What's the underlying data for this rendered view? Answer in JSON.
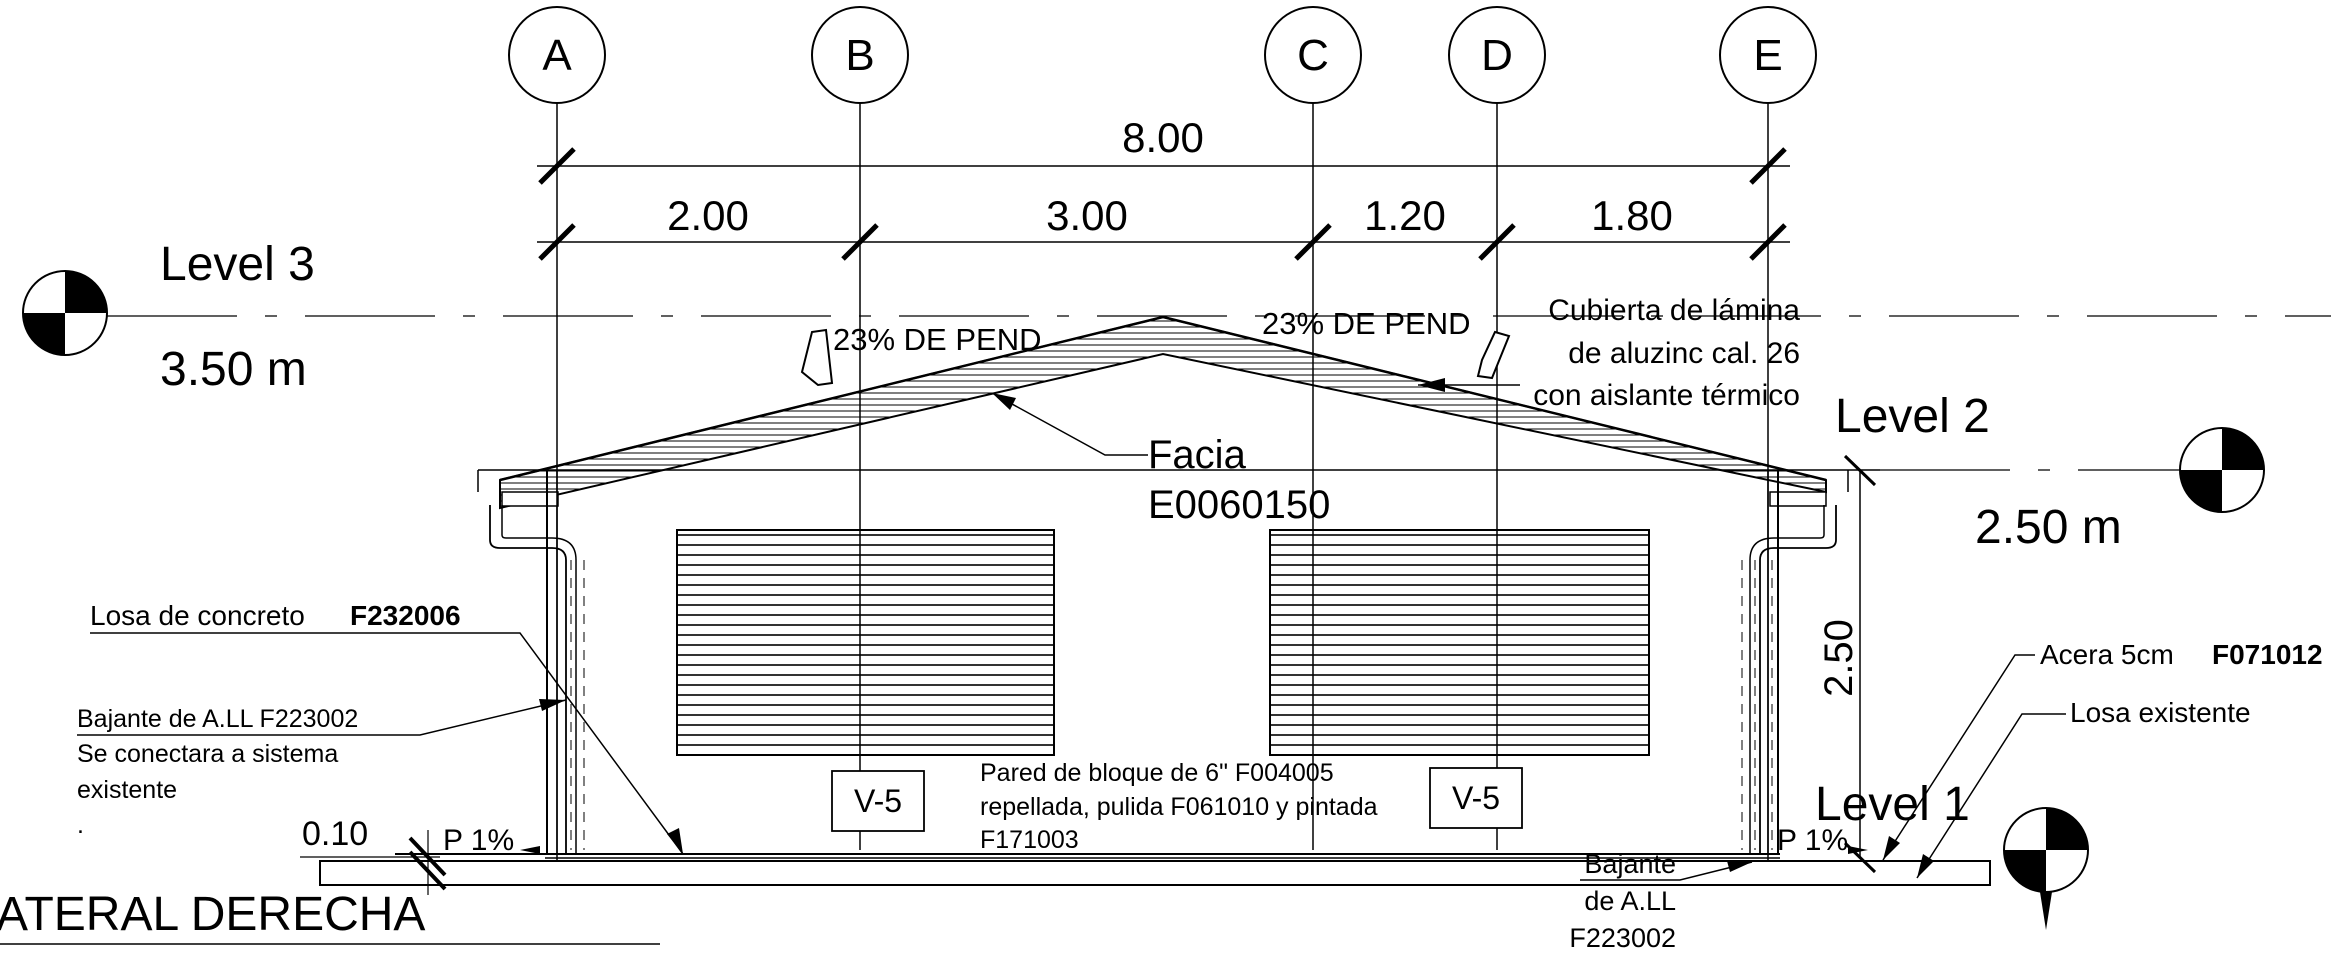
{
  "grid": {
    "labels": [
      "A",
      "B",
      "C",
      "D",
      "E"
    ]
  },
  "dimensions": {
    "overall": "8.00",
    "segments": [
      "2.00",
      "3.00",
      "1.20",
      "1.80"
    ],
    "height": "2.50",
    "base": "0.10"
  },
  "levels": [
    {
      "name": "Level 3",
      "elevation": "3.50 m"
    },
    {
      "name": "Level 2",
      "elevation": "2.50 m"
    },
    {
      "name": "Level 1",
      "elevation": ""
    }
  ],
  "annotations": {
    "slope_left": "23% DE PEND",
    "slope_right": "23% DE PEND",
    "roof_note": [
      "Cubierta de lámina",
      "de aluzinc cal. 26",
      "con aislante térmico"
    ],
    "facia": [
      "Facia",
      "E0060150"
    ],
    "slab": {
      "text": "Losa de concreto",
      "code": "F232006"
    },
    "downpipe_left": [
      "Bajante de A.LL F223002",
      "Se conectara a sistema",
      "existente",
      "."
    ],
    "downpipe_right": [
      "Bajante",
      "de A.LL",
      "F223002"
    ],
    "wall_note": [
      "Pared de bloque de 6\" F004005",
      "repellada, pulida F061010 y pintada",
      "F171003"
    ],
    "window_tag_left": "V-5",
    "window_tag_right": "V-5",
    "slope_floor_left": "P 1%",
    "slope_floor_right": "P 1%",
    "sidewalk": {
      "text": "Acera 5cm",
      "code": "F071012"
    },
    "existing_slab": "Losa existente"
  },
  "title": "ATERAL DERECHA"
}
